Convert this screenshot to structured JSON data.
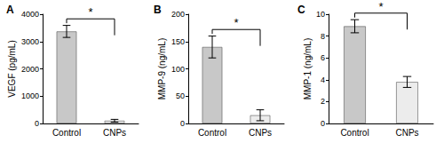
{
  "chart_data": [
    {
      "type": "bar",
      "title": "A",
      "y_label": "VEGF (pg/mL)",
      "categories": [
        "Control",
        "CNPs"
      ],
      "values": [
        3370,
        100
      ],
      "errors": [
        220,
        50
      ],
      "colors": [
        "#c8c8c8",
        "#ececec"
      ],
      "ylim": [
        0,
        4000
      ],
      "yticks": [
        0,
        1000,
        2000,
        3000,
        4000
      ],
      "grid": false,
      "annotation": "*"
    },
    {
      "type": "bar",
      "title": "B",
      "y_label": "MMP-9 (ng/mL)",
      "categories": [
        "Control",
        "CNPs"
      ],
      "values": [
        140,
        15
      ],
      "errors": [
        20,
        10
      ],
      "colors": [
        "#c8c8c8",
        "#ececec"
      ],
      "ylim": [
        0,
        200
      ],
      "yticks": [
        0,
        50,
        100,
        150,
        200
      ],
      "grid": false,
      "annotation": "*"
    },
    {
      "type": "bar",
      "title": "C",
      "y_label": "MMP-1 (ng/mL)",
      "categories": [
        "Control",
        "CNPs"
      ],
      "values": [
        8.9,
        3.8
      ],
      "errors": [
        0.6,
        0.5
      ],
      "colors": [
        "#c8c8c8",
        "#ececec"
      ],
      "ylim": [
        0,
        10
      ],
      "yticks": [
        0,
        2,
        4,
        6,
        8,
        10
      ],
      "grid": false,
      "annotation": "*"
    }
  ]
}
